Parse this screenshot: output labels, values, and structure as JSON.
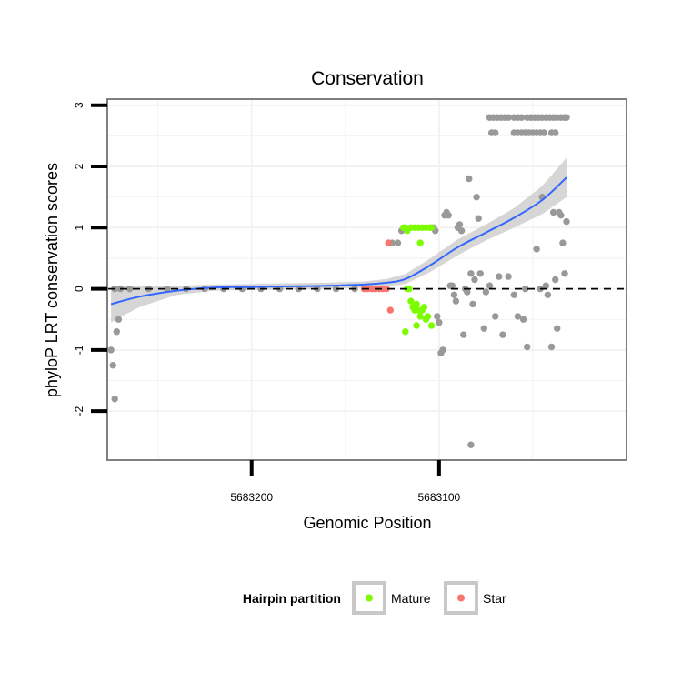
{
  "chart_data": {
    "type": "scatter",
    "title": "Conservation",
    "xlabel": "Genomic Position",
    "ylabel": "phyloP LRT conservation scores",
    "x_reversed": true,
    "xlim": [
      5683277,
      5683000
    ],
    "ylim": [
      -2.8,
      3.1
    ],
    "x_ticks": [
      5683200,
      5683100
    ],
    "y_ticks": [
      3,
      2,
      1,
      0,
      -1,
      -2
    ],
    "x_tick_labels": [
      "5683200",
      "5683100"
    ],
    "y_tick_labels": [
      "3",
      "2",
      "1",
      "0",
      "-1",
      "-2"
    ],
    "reference_line": {
      "y": 0,
      "style": "dashed"
    },
    "colors": {
      "other": "#999999",
      "mature": "#7CFC00",
      "star": "#F8766D",
      "smooth": "#3366FF",
      "ribbon": "#CCCCCC",
      "border": "#7F7F7F",
      "grid": "#F2F2F2"
    },
    "legend": {
      "title": "Hairpin partition",
      "position": "bottom",
      "items": [
        {
          "label": "Mature",
          "color": "#7CFC00"
        },
        {
          "label": "Star",
          "color": "#F8766D"
        }
      ]
    },
    "series": [
      {
        "name": "Other",
        "points": [
          [
            5683275,
            -1
          ],
          [
            5683274,
            -1.25
          ],
          [
            5683273,
            -1.8
          ],
          [
            5683272,
            -0.7
          ],
          [
            5683271,
            -0.5
          ],
          [
            5683273,
            0
          ],
          [
            5683270,
            0
          ],
          [
            5683265,
            0
          ],
          [
            5683255,
            0
          ],
          [
            5683245,
            0
          ],
          [
            5683235,
            0
          ],
          [
            5683225,
            0
          ],
          [
            5683215,
            0
          ],
          [
            5683205,
            0
          ],
          [
            5683195,
            0
          ],
          [
            5683185,
            0
          ],
          [
            5683175,
            0
          ],
          [
            5683165,
            0
          ],
          [
            5683155,
            0
          ],
          [
            5683145,
            0
          ],
          [
            5683135,
            0
          ],
          [
            5683127,
            0.75
          ],
          [
            5683125,
            0.75
          ],
          [
            5683122,
            0.75
          ],
          [
            5683120,
            0.95
          ],
          [
            5683103,
            1
          ],
          [
            5683102,
            0.95
          ],
          [
            5683101,
            -0.45
          ],
          [
            5683100,
            -0.55
          ],
          [
            5683099,
            -1.05
          ],
          [
            5683098,
            -1.0
          ],
          [
            5683097,
            1.2
          ],
          [
            5683096,
            1.25
          ],
          [
            5683095,
            1.2
          ],
          [
            5683094,
            0.05
          ],
          [
            5683093,
            0.05
          ],
          [
            5683092,
            -0.1
          ],
          [
            5683091,
            -0.2
          ],
          [
            5683090,
            1.0
          ],
          [
            5683089,
            1.05
          ],
          [
            5683088,
            0.95
          ],
          [
            5683087,
            -0.75
          ],
          [
            5683086,
            0
          ],
          [
            5683085,
            -0.05
          ],
          [
            5683084,
            1.8
          ],
          [
            5683083,
            0.25
          ],
          [
            5683082,
            -0.25
          ],
          [
            5683081,
            0.15
          ],
          [
            5683080,
            1.5
          ],
          [
            5683079,
            1.15
          ],
          [
            5683078,
            0.25
          ],
          [
            5683076,
            -0.65
          ],
          [
            5683075,
            -0.05
          ],
          [
            5683073,
            0.05
          ],
          [
            5683070,
            -0.45
          ],
          [
            5683068,
            0.2
          ],
          [
            5683066,
            -0.75
          ],
          [
            5683063,
            0.2
          ],
          [
            5683060,
            -0.1
          ],
          [
            5683058,
            -0.45
          ],
          [
            5683055,
            -0.5
          ],
          [
            5683054,
            0
          ],
          [
            5683053,
            -0.95
          ],
          [
            5683048,
            0.65
          ],
          [
            5683046,
            0
          ],
          [
            5683045,
            1.5
          ],
          [
            5683043,
            0.05
          ],
          [
            5683042,
            -0.1
          ],
          [
            5683040,
            -0.95
          ],
          [
            5683039,
            1.25
          ],
          [
            5683038,
            0.15
          ],
          [
            5683037,
            -0.65
          ],
          [
            5683036,
            1.25
          ],
          [
            5683035,
            1.2
          ],
          [
            5683034,
            0.75
          ],
          [
            5683033,
            0.25
          ],
          [
            5683032,
            1.1
          ],
          [
            5683083,
            -2.55
          ],
          [
            5683073,
            2.8
          ],
          [
            5683071,
            2.8
          ],
          [
            5683069,
            2.8
          ],
          [
            5683067,
            2.8
          ],
          [
            5683065,
            2.8
          ],
          [
            5683063,
            2.8
          ],
          [
            5683060,
            2.8
          ],
          [
            5683058,
            2.8
          ],
          [
            5683056,
            2.8
          ],
          [
            5683053,
            2.8
          ],
          [
            5683051,
            2.8
          ],
          [
            5683049,
            2.8
          ],
          [
            5683047,
            2.8
          ],
          [
            5683045,
            2.8
          ],
          [
            5683043,
            2.8
          ],
          [
            5683041,
            2.8
          ],
          [
            5683039,
            2.8
          ],
          [
            5683037,
            2.8
          ],
          [
            5683035,
            2.8
          ],
          [
            5683033,
            2.8
          ],
          [
            5683032,
            2.8
          ],
          [
            5683072,
            2.55
          ],
          [
            5683070,
            2.55
          ],
          [
            5683060,
            2.55
          ],
          [
            5683058,
            2.55
          ],
          [
            5683056,
            2.55
          ],
          [
            5683054,
            2.55
          ],
          [
            5683052,
            2.55
          ],
          [
            5683050,
            2.55
          ],
          [
            5683048,
            2.55
          ],
          [
            5683046,
            2.55
          ],
          [
            5683044,
            2.55
          ],
          [
            5683040,
            2.55
          ],
          [
            5683038,
            2.55
          ]
        ]
      },
      {
        "name": "Mature",
        "points": [
          [
            5683119,
            1
          ],
          [
            5683118,
            1
          ],
          [
            5683117,
            0.95
          ],
          [
            5683115,
            1
          ],
          [
            5683113,
            1
          ],
          [
            5683111,
            1
          ],
          [
            5683109,
            1
          ],
          [
            5683107,
            1
          ],
          [
            5683105,
            1
          ],
          [
            5683104,
            1
          ],
          [
            5683110,
            0.75
          ],
          [
            5683117,
            0
          ],
          [
            5683116,
            0
          ],
          [
            5683115,
            -0.2
          ],
          [
            5683114,
            -0.3
          ],
          [
            5683113,
            -0.35
          ],
          [
            5683112,
            -0.25
          ],
          [
            5683111,
            -0.35
          ],
          [
            5683110,
            -0.45
          ],
          [
            5683109,
            -0.35
          ],
          [
            5683108,
            -0.3
          ],
          [
            5683107,
            -0.5
          ],
          [
            5683106,
            -0.45
          ],
          [
            5683104,
            -0.6
          ],
          [
            5683112,
            -0.6
          ],
          [
            5683118,
            -0.7
          ]
        ]
      },
      {
        "name": "Star",
        "points": [
          [
            5683127,
            0.75
          ],
          [
            5683126,
            -0.35
          ],
          [
            5683128,
            0
          ],
          [
            5683130,
            0
          ],
          [
            5683132,
            0
          ],
          [
            5683134,
            0
          ],
          [
            5683136,
            0
          ],
          [
            5683138,
            0
          ],
          [
            5683140,
            0
          ]
        ]
      }
    ],
    "smooth_curve": {
      "x": [
        5683275,
        5683260,
        5683240,
        5683220,
        5683200,
        5683180,
        5683160,
        5683140,
        5683128,
        5683118,
        5683105,
        5683090,
        5683075,
        5683060,
        5683045,
        5683032
      ],
      "y": [
        -0.25,
        -0.13,
        -0.03,
        0.02,
        0.03,
        0.04,
        0.05,
        0.07,
        0.1,
        0.16,
        0.38,
        0.68,
        0.92,
        1.16,
        1.45,
        1.82
      ],
      "lower": [
        -0.55,
        -0.3,
        -0.1,
        -0.03,
        -0.02,
        -0.01,
        0.0,
        0.02,
        0.04,
        0.08,
        0.27,
        0.55,
        0.79,
        1.0,
        1.22,
        1.5
      ],
      "upper": [
        0.05,
        0.04,
        0.05,
        0.07,
        0.08,
        0.09,
        0.1,
        0.12,
        0.16,
        0.24,
        0.49,
        0.81,
        1.05,
        1.32,
        1.68,
        2.14
      ]
    }
  }
}
